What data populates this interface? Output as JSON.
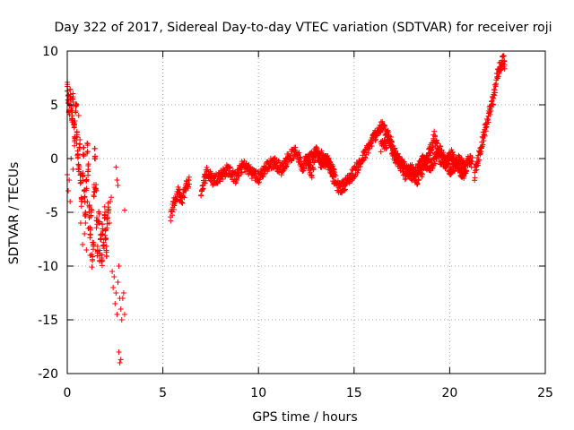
{
  "chart_data": {
    "type": "scatter",
    "title": "Day 322 of 2017, Sidereal Day-to-day VTEC variation (SDTVAR) for receiver roji",
    "xlabel": "GPS time / hours",
    "ylabel": "SDTVAR / TECUs",
    "xlim": [
      0,
      25
    ],
    "ylim": [
      -20,
      10
    ],
    "xticks": [
      0,
      5,
      10,
      15,
      20,
      25
    ],
    "yticks": [
      -20,
      -15,
      -10,
      -5,
      0,
      5,
      10
    ],
    "grid": true,
    "marker": "+",
    "color": "#ff0000",
    "anchors": [
      [
        0.0,
        6.5
      ],
      [
        0.05,
        5.5
      ],
      [
        0.1,
        4.5
      ],
      [
        0.15,
        6.0
      ],
      [
        0.2,
        5.0
      ],
      [
        0.25,
        4.0
      ],
      [
        0.3,
        5.5
      ],
      [
        0.35,
        3.0
      ],
      [
        0.4,
        1.5
      ],
      [
        0.45,
        4.5
      ],
      [
        0.5,
        2.0
      ],
      [
        0.55,
        0.5
      ],
      [
        0.6,
        -1.0
      ],
      [
        0.65,
        1.5
      ],
      [
        0.7,
        -2.0
      ],
      [
        0.75,
        -4.0
      ],
      [
        0.8,
        -1.5
      ],
      [
        0.85,
        0.5
      ],
      [
        0.9,
        -3.5
      ],
      [
        0.95,
        -5.5
      ],
      [
        1.0,
        -2.5
      ],
      [
        1.05,
        1.0
      ],
      [
        1.1,
        -1.0
      ],
      [
        1.15,
        -4.5
      ],
      [
        1.2,
        -7.0
      ],
      [
        1.25,
        -5.0
      ],
      [
        1.3,
        -9.5
      ],
      [
        1.35,
        -8.0
      ],
      [
        1.4,
        -3.0
      ],
      [
        1.45,
        0.5
      ],
      [
        1.5,
        -2.5
      ],
      [
        1.55,
        -6.0
      ],
      [
        1.6,
        -8.5
      ],
      [
        1.65,
        -5.5
      ],
      [
        1.7,
        -9.0
      ],
      [
        1.75,
        -7.5
      ],
      [
        1.8,
        -9.5
      ],
      [
        1.85,
        -6.5
      ],
      [
        1.9,
        -8.0
      ],
      [
        1.95,
        -5.0
      ],
      [
        2.0,
        -7.0
      ],
      [
        2.05,
        -8.5
      ],
      [
        2.1,
        -6.0
      ],
      [
        2.15,
        -4.5
      ]
    ],
    "scatter_points": [
      [
        0.0,
        -1.5
      ],
      [
        0.05,
        -3.0
      ],
      [
        0.1,
        -2.0
      ],
      [
        0.15,
        -4.0
      ],
      [
        0.2,
        0.0
      ],
      [
        0.3,
        -1.0
      ],
      [
        0.7,
        -6.0
      ],
      [
        0.8,
        -8.0
      ],
      [
        0.9,
        -7.0
      ],
      [
        1.0,
        -8.5
      ],
      [
        1.1,
        -6.5
      ],
      [
        1.2,
        -9.0
      ],
      [
        0.4,
        3.5
      ],
      [
        0.5,
        5.0
      ],
      [
        0.6,
        4.0
      ],
      [
        2.2,
        -6.0
      ],
      [
        2.25,
        -4.0
      ],
      [
        2.3,
        -3.6
      ],
      [
        2.35,
        -10.5
      ],
      [
        2.4,
        -12.0
      ],
      [
        2.45,
        -11.0
      ],
      [
        2.5,
        -13.5
      ],
      [
        2.55,
        -12.5
      ],
      [
        2.6,
        -14.5
      ],
      [
        2.65,
        -11.5
      ],
      [
        2.7,
        -10.0
      ],
      [
        2.75,
        -13.0
      ],
      [
        2.8,
        -14.0
      ],
      [
        2.85,
        -15.0
      ],
      [
        2.9,
        -13.0
      ],
      [
        2.95,
        -12.5
      ],
      [
        3.0,
        -14.5
      ],
      [
        2.7,
        -18.0
      ],
      [
        2.75,
        -19.0
      ],
      [
        2.8,
        -18.7
      ],
      [
        3.0,
        -4.8
      ],
      [
        2.55,
        -0.8
      ],
      [
        2.6,
        -2.0
      ],
      [
        2.65,
        -2.5
      ],
      [
        0.95,
        -5.0
      ],
      [
        1.05,
        -4.0
      ],
      [
        1.15,
        -5.5
      ]
    ],
    "segments": [
      [
        [
          5.4,
          -5.5
        ],
        [
          5.6,
          -4.0
        ],
        [
          5.8,
          -3.2
        ],
        [
          6.0,
          -4.0
        ],
        [
          6.2,
          -2.5
        ],
        [
          6.4,
          -2.2
        ]
      ],
      [
        [
          7.0,
          -3.0
        ],
        [
          7.3,
          -1.2
        ],
        [
          7.6,
          -2.0
        ],
        [
          8.0,
          -1.6
        ],
        [
          8.4,
          -1.0
        ],
        [
          8.8,
          -1.8
        ],
        [
          9.2,
          -0.6
        ],
        [
          9.6,
          -1.2
        ],
        [
          10.0,
          -1.8
        ],
        [
          10.4,
          -0.8
        ],
        [
          10.8,
          -0.3
        ],
        [
          11.2,
          -1.0
        ],
        [
          11.6,
          0.2
        ],
        [
          12.0,
          0.6
        ],
        [
          12.3,
          -0.8
        ],
        [
          12.5,
          0.0
        ],
        [
          12.8,
          -1.5
        ],
        [
          13.0,
          0.8
        ],
        [
          13.3,
          -0.5
        ],
        [
          13.6,
          0.0
        ],
        [
          13.9,
          -1.2
        ],
        [
          14.1,
          -2.5
        ],
        [
          14.3,
          -2.8
        ],
        [
          14.6,
          -2.2
        ],
        [
          14.9,
          -1.5
        ],
        [
          15.3,
          -0.5
        ],
        [
          15.6,
          0.5
        ],
        [
          15.9,
          1.5
        ],
        [
          16.2,
          2.5
        ],
        [
          16.5,
          3.0
        ],
        [
          16.8,
          2.0
        ],
        [
          17.1,
          1.0
        ],
        [
          17.4,
          -0.5
        ],
        [
          17.7,
          -1.5
        ],
        [
          18.0,
          -1.0
        ],
        [
          18.3,
          -2.0
        ],
        [
          18.6,
          -1.0
        ],
        [
          18.9,
          0.5
        ],
        [
          19.2,
          2.0
        ],
        [
          19.5,
          0.0
        ],
        [
          19.8,
          -0.5
        ],
        [
          20.1,
          0.3
        ],
        [
          20.4,
          -0.8
        ],
        [
          20.7,
          -1.5
        ],
        [
          21.0,
          0.0
        ],
        [
          21.2,
          -0.5
        ]
      ],
      [
        [
          12.5,
          -0.4
        ],
        [
          12.9,
          0.4
        ],
        [
          13.3,
          0.2
        ],
        [
          13.7,
          -0.6
        ],
        [
          14.0,
          -2.2
        ]
      ],
      [
        [
          16.4,
          1.0
        ],
        [
          16.8,
          1.6
        ],
        [
          17.2,
          0.0
        ],
        [
          17.6,
          -0.8
        ],
        [
          18.1,
          -1.6
        ],
        [
          18.6,
          -0.2
        ],
        [
          19.0,
          -0.8
        ],
        [
          19.5,
          0.8
        ],
        [
          20.0,
          -1.2
        ],
        [
          20.5,
          -0.2
        ],
        [
          20.9,
          -1.0
        ]
      ],
      [
        [
          21.3,
          -1.5
        ],
        [
          21.5,
          0.0
        ],
        [
          21.7,
          1.5
        ],
        [
          21.9,
          3.0
        ],
        [
          22.1,
          4.5
        ],
        [
          22.3,
          5.5
        ],
        [
          22.4,
          7.0
        ],
        [
          22.6,
          8.5
        ],
        [
          22.8,
          9.2
        ],
        [
          22.9,
          8.5
        ]
      ]
    ]
  }
}
